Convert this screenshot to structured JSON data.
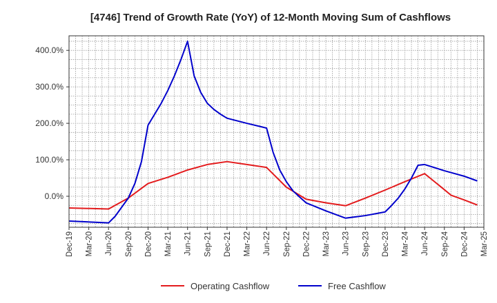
{
  "chart_data": {
    "type": "line",
    "title": "[4746]  Trend of Growth Rate (YoY) of 12-Month Moving Sum of Cashflows",
    "xlabel": "",
    "ylabel": "",
    "x_ticks": [
      "Dec-19",
      "Mar-20",
      "Jun-20",
      "Sep-20",
      "Dec-20",
      "Mar-21",
      "Jun-21",
      "Sep-21",
      "Dec-21",
      "Mar-22",
      "Jun-22",
      "Sep-22",
      "Dec-22",
      "Mar-23",
      "Jun-23",
      "Sep-23",
      "Dec-23",
      "Mar-24",
      "Jun-24",
      "Sep-24",
      "Dec-24",
      "Mar-25"
    ],
    "y_ticks": [
      0,
      100,
      200,
      300,
      400
    ],
    "y_tick_labels": [
      "0.0%",
      "100.0%",
      "200.0%",
      "300.0%",
      "400.0%"
    ],
    "ylim": [
      -85,
      440
    ],
    "xlim": [
      0,
      63
    ],
    "grid": true,
    "legend_position": "bottom",
    "series": [
      {
        "name": "Operating Cashflow",
        "color": "#e31a1c",
        "x": [
          0,
          6,
          9,
          12,
          15,
          18,
          21,
          24,
          27,
          30,
          33,
          36,
          39,
          42,
          45,
          48,
          51,
          54,
          57,
          58,
          60,
          62
        ],
        "y": [
          -32,
          -35,
          -5,
          35,
          52,
          72,
          87,
          95,
          87,
          79,
          25,
          -8,
          -18,
          -26,
          -5,
          17,
          40,
          62,
          18,
          3,
          -10,
          -24
        ]
      },
      {
        "name": "Free Cashflow",
        "color": "#0000cc",
        "x": [
          0,
          6,
          7,
          8,
          9,
          10,
          11,
          12,
          13,
          14,
          15,
          16,
          17,
          18,
          19,
          20,
          21,
          22,
          23,
          24,
          27,
          30,
          31,
          32,
          33,
          34,
          35,
          36,
          39,
          42,
          45,
          48,
          49,
          50,
          51,
          52,
          53,
          54,
          57,
          60,
          62
        ],
        "y": [
          -68,
          -73,
          -55,
          -30,
          -5,
          35,
          95,
          195,
          225,
          255,
          290,
          330,
          375,
          425,
          330,
          285,
          255,
          238,
          225,
          214,
          200,
          187,
          120,
          72,
          40,
          15,
          -2,
          -18,
          -40,
          -60,
          -53,
          -43,
          -25,
          -5,
          20,
          50,
          85,
          87,
          70,
          55,
          42
        ]
      }
    ]
  }
}
